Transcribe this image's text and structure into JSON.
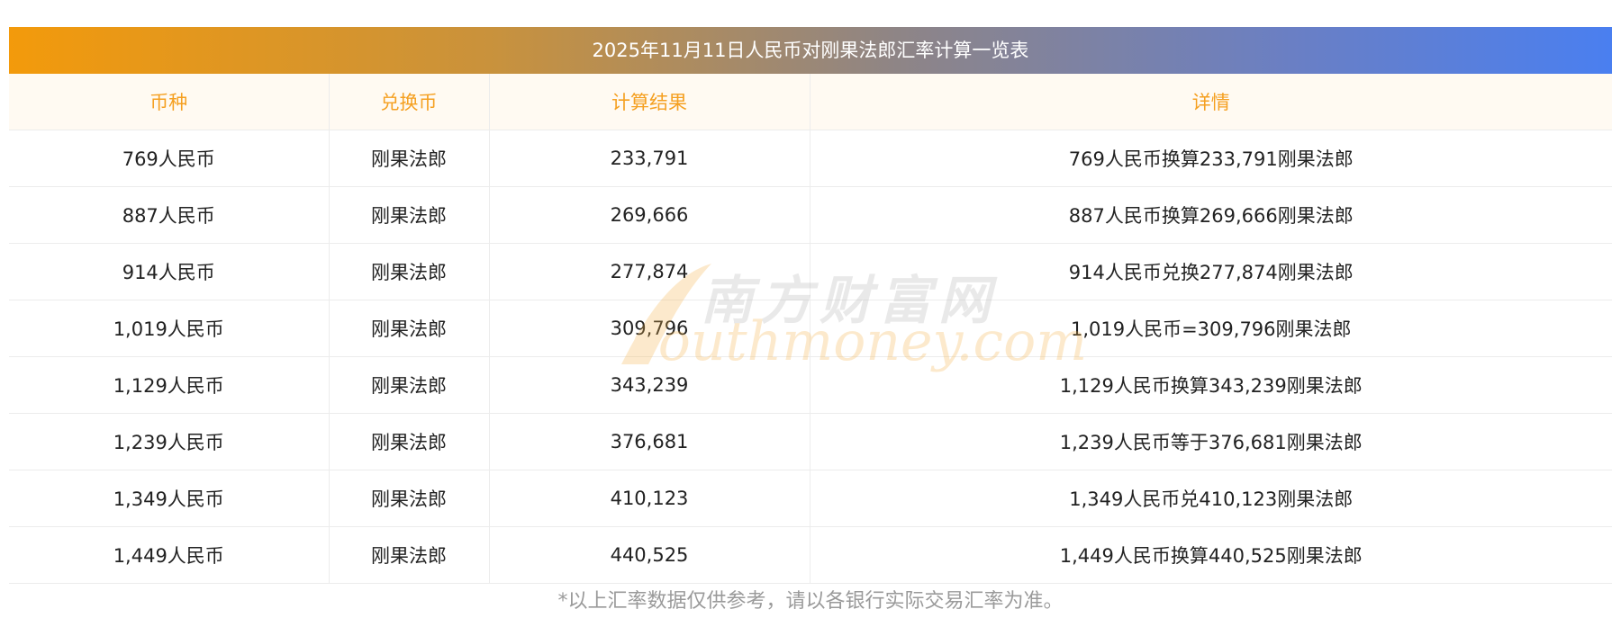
{
  "table": {
    "title": "2025年11月11日人民币对刚果法郎汇率计算一览表",
    "headers": {
      "currency": "币种",
      "target": "兑换币",
      "result": "计算结果",
      "detail": "详情"
    },
    "rows": [
      {
        "currency": "769人民币",
        "target": "刚果法郎",
        "result": "233,791",
        "detail": "769人民币换算233,791刚果法郎"
      },
      {
        "currency": "887人民币",
        "target": "刚果法郎",
        "result": "269,666",
        "detail": "887人民币换算269,666刚果法郎"
      },
      {
        "currency": "914人民币",
        "target": "刚果法郎",
        "result": "277,874",
        "detail": "914人民币兑换277,874刚果法郎"
      },
      {
        "currency": "1,019人民币",
        "target": "刚果法郎",
        "result": "309,796",
        "detail": "1,019人民币=309,796刚果法郎"
      },
      {
        "currency": "1,129人民币",
        "target": "刚果法郎",
        "result": "343,239",
        "detail": "1,129人民币换算343,239刚果法郎"
      },
      {
        "currency": "1,239人民币",
        "target": "刚果法郎",
        "result": "376,681",
        "detail": "1,239人民币等于376,681刚果法郎"
      },
      {
        "currency": "1,349人民币",
        "target": "刚果法郎",
        "result": "410,123",
        "detail": "1,349人民币兑410,123刚果法郎"
      },
      {
        "currency": "1,449人民币",
        "target": "刚果法郎",
        "result": "440,525",
        "detail": "1,449人民币换算440,525刚果法郎"
      }
    ]
  },
  "footnote": "*以上汇率数据仅供参考，请以各银行实际交易汇率为准。",
  "watermark": {
    "cn": "南方财富网",
    "en": "southmoney.com"
  },
  "colors": {
    "header_text": "#f5a021",
    "header_bg": "#fffaf2",
    "title_gradient_start": "#f39a0b",
    "title_gradient_end": "#4a7ff0",
    "footnote": "#9a9a9a"
  }
}
